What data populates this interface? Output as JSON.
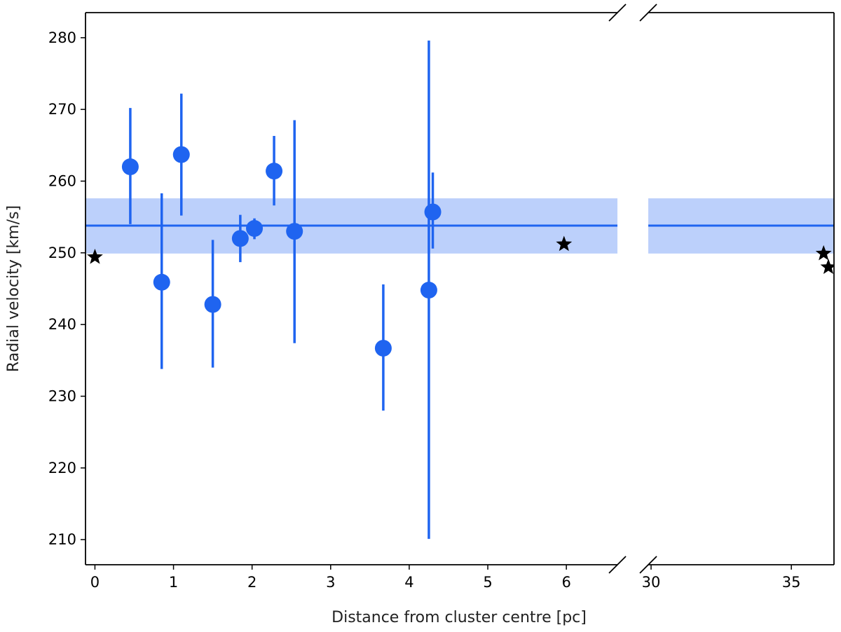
{
  "chart_data": {
    "type": "scatter",
    "title": "",
    "xlabel": "Distance from cluster centre [pc]",
    "ylabel": "Radial velocity [km/s]",
    "broken_x_axis": true,
    "panels": [
      {
        "xlim": [
          -0.12,
          6.65
        ],
        "xticks": [
          0,
          1,
          2,
          3,
          4,
          5,
          6
        ]
      },
      {
        "xlim": [
          29.9,
          36.52
        ],
        "xticks": [
          30,
          35
        ]
      }
    ],
    "ylim": [
      206.5,
      283.5
    ],
    "yticks": [
      210,
      220,
      230,
      240,
      250,
      260,
      270,
      280
    ],
    "grid": false,
    "colors": {
      "measurement": "#1f64f0",
      "band": "#bcd0fb",
      "star": "#000000"
    },
    "mean_velocity": 253.8,
    "mean_band": [
      249.9,
      257.6
    ],
    "measurements": [
      {
        "x": 0.45,
        "y": 262.0,
        "yerr_low": 254.0,
        "yerr_high": 270.2
      },
      {
        "x": 0.85,
        "y": 245.9,
        "yerr_low": 233.8,
        "yerr_high": 258.3
      },
      {
        "x": 1.1,
        "y": 263.7,
        "yerr_low": 255.2,
        "yerr_high": 272.2
      },
      {
        "x": 1.5,
        "y": 242.8,
        "yerr_low": 234.0,
        "yerr_high": 251.8
      },
      {
        "x": 1.85,
        "y": 252.0,
        "yerr_low": 248.7,
        "yerr_high": 255.3
      },
      {
        "x": 2.03,
        "y": 253.4,
        "yerr_low": 251.9,
        "yerr_high": 254.8
      },
      {
        "x": 2.28,
        "y": 261.4,
        "yerr_low": 256.6,
        "yerr_high": 266.3
      },
      {
        "x": 2.54,
        "y": 253.0,
        "yerr_low": 237.4,
        "yerr_high": 268.5
      },
      {
        "x": 3.67,
        "y": 236.7,
        "yerr_low": 228.0,
        "yerr_high": 245.6
      },
      {
        "x": 4.25,
        "y": 244.8,
        "yerr_low": 210.1,
        "yerr_high": 279.6
      },
      {
        "x": 4.3,
        "y": 255.7,
        "yerr_low": 250.6,
        "yerr_high": 261.2
      }
    ],
    "stars": [
      {
        "x": 0.0,
        "y": 249.4
      },
      {
        "x": 5.97,
        "y": 251.2
      },
      {
        "x": 36.15,
        "y": 249.9
      },
      {
        "x": 36.32,
        "y": 248.0
      }
    ]
  }
}
